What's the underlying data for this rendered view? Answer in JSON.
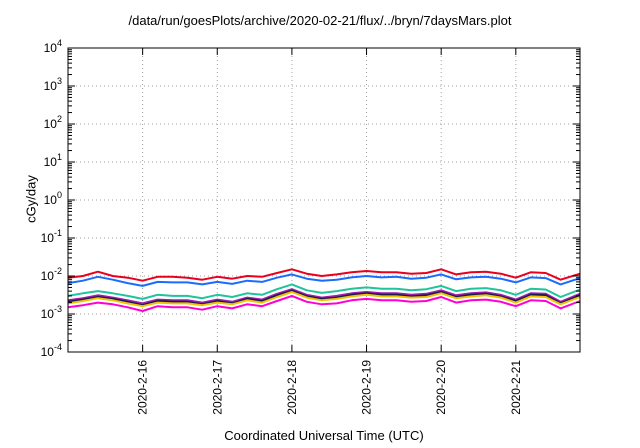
{
  "chart_data": {
    "type": "line",
    "title": "/data/run/goesPlots/archive/2020-02-21/flux/../bryn/7daysMars.plot",
    "xlabel": "Coordinated Universal Time (UTC)",
    "ylabel": "cGy/day",
    "y_scale": "log",
    "ylim": [
      0.0001,
      10000
    ],
    "xlim": [
      0,
      6.86
    ],
    "y_ticks": [
      {
        "value": 0.0001,
        "base": "10",
        "exp": "-4"
      },
      {
        "value": 0.001,
        "base": "10",
        "exp": "-3"
      },
      {
        "value": 0.01,
        "base": "10",
        "exp": "-2"
      },
      {
        "value": 0.1,
        "base": "10",
        "exp": "-1"
      },
      {
        "value": 1,
        "base": "10",
        "exp": "0"
      },
      {
        "value": 10,
        "base": "10",
        "exp": "1"
      },
      {
        "value": 100,
        "base": "10",
        "exp": "2"
      },
      {
        "value": 1000,
        "base": "10",
        "exp": "3"
      },
      {
        "value": 10000,
        "base": "10",
        "exp": "4"
      }
    ],
    "x_ticks": [
      {
        "value": 1,
        "label": "2020-2-16"
      },
      {
        "value": 2,
        "label": "2020-2-17"
      },
      {
        "value": 3,
        "label": "2020-2-18"
      },
      {
        "value": 4,
        "label": "2020-2-19"
      },
      {
        "value": 5,
        "label": "2020-2-20"
      },
      {
        "value": 6,
        "label": "2020-2-21"
      }
    ],
    "grid": true,
    "x": [
      0.0,
      0.2,
      0.4,
      0.6,
      0.8,
      1.0,
      1.2,
      1.4,
      1.6,
      1.8,
      2.0,
      2.2,
      2.4,
      2.6,
      2.8,
      3.0,
      3.2,
      3.4,
      3.6,
      3.8,
      4.0,
      4.2,
      4.4,
      4.6,
      4.8,
      5.0,
      5.2,
      5.4,
      5.6,
      5.8,
      6.0,
      6.2,
      6.4,
      6.6,
      6.86
    ],
    "series": [
      {
        "color": "#e8001c",
        "values": [
          0.009,
          0.01,
          0.013,
          0.01,
          0.009,
          0.0075,
          0.0095,
          0.0095,
          0.009,
          0.008,
          0.0095,
          0.0085,
          0.01,
          0.0095,
          0.012,
          0.015,
          0.0115,
          0.01,
          0.011,
          0.0125,
          0.0135,
          0.0125,
          0.0125,
          0.0115,
          0.012,
          0.015,
          0.011,
          0.0125,
          0.013,
          0.0115,
          0.009,
          0.0125,
          0.012,
          0.008,
          0.0115
        ]
      },
      {
        "color": "#1a6cff",
        "values": [
          0.0065,
          0.0075,
          0.0095,
          0.008,
          0.0065,
          0.0055,
          0.007,
          0.0068,
          0.0068,
          0.006,
          0.007,
          0.0062,
          0.0075,
          0.007,
          0.009,
          0.011,
          0.0085,
          0.0075,
          0.008,
          0.0092,
          0.01,
          0.0092,
          0.0095,
          0.0085,
          0.009,
          0.011,
          0.0082,
          0.0092,
          0.0095,
          0.0085,
          0.0068,
          0.0092,
          0.0088,
          0.006,
          0.0088
        ]
      },
      {
        "color": "#20c49a",
        "values": [
          0.003,
          0.0035,
          0.004,
          0.0035,
          0.003,
          0.0025,
          0.0032,
          0.003,
          0.003,
          0.0026,
          0.0032,
          0.0028,
          0.0035,
          0.0032,
          0.0045,
          0.006,
          0.0042,
          0.0036,
          0.004,
          0.0046,
          0.005,
          0.0046,
          0.0046,
          0.0042,
          0.0045,
          0.0055,
          0.004,
          0.0046,
          0.0048,
          0.0042,
          0.0032,
          0.0046,
          0.0044,
          0.0028,
          0.0044
        ]
      },
      {
        "color": "#9e1caf",
        "values": [
          0.0023,
          0.0026,
          0.0031,
          0.0027,
          0.0023,
          0.0019,
          0.0024,
          0.0023,
          0.0023,
          0.002,
          0.0024,
          0.0021,
          0.0027,
          0.0024,
          0.0034,
          0.0045,
          0.0032,
          0.0027,
          0.003,
          0.0035,
          0.0038,
          0.0035,
          0.0035,
          0.0032,
          0.0034,
          0.0042,
          0.0031,
          0.0035,
          0.0037,
          0.0032,
          0.0024,
          0.0035,
          0.0034,
          0.0021,
          0.0034
        ]
      },
      {
        "color": "#1a1a4d",
        "values": [
          0.0021,
          0.0024,
          0.0028,
          0.0025,
          0.0021,
          0.0017,
          0.0022,
          0.0021,
          0.0021,
          0.0018,
          0.0022,
          0.0019,
          0.0025,
          0.0022,
          0.0031,
          0.0041,
          0.0029,
          0.0025,
          0.0027,
          0.0032,
          0.0035,
          0.0032,
          0.0032,
          0.0029,
          0.0031,
          0.0038,
          0.0028,
          0.0032,
          0.0034,
          0.0029,
          0.0022,
          0.0032,
          0.0031,
          0.0019,
          0.0031
        ]
      },
      {
        "color": "#f0c400",
        "values": [
          0.0019,
          0.0022,
          0.0026,
          0.0023,
          0.0019,
          0.0016,
          0.002,
          0.0019,
          0.0019,
          0.0017,
          0.002,
          0.0018,
          0.0023,
          0.002,
          0.0028,
          0.0038,
          0.0027,
          0.0023,
          0.0025,
          0.0029,
          0.0032,
          0.0029,
          0.0029,
          0.0027,
          0.0028,
          0.0035,
          0.0026,
          0.0029,
          0.0031,
          0.0027,
          0.002,
          0.0029,
          0.0028,
          0.0018,
          0.0028
        ]
      },
      {
        "color": "#ff00d4",
        "values": [
          0.0015,
          0.0017,
          0.002,
          0.0018,
          0.0015,
          0.0012,
          0.0016,
          0.0015,
          0.0015,
          0.0013,
          0.0016,
          0.0014,
          0.0018,
          0.0016,
          0.0022,
          0.003,
          0.0021,
          0.0018,
          0.0019,
          0.0023,
          0.0025,
          0.0023,
          0.0023,
          0.0021,
          0.0022,
          0.0028,
          0.002,
          0.0023,
          0.0024,
          0.0021,
          0.0016,
          0.0023,
          0.0022,
          0.0014,
          0.0022
        ]
      }
    ]
  }
}
